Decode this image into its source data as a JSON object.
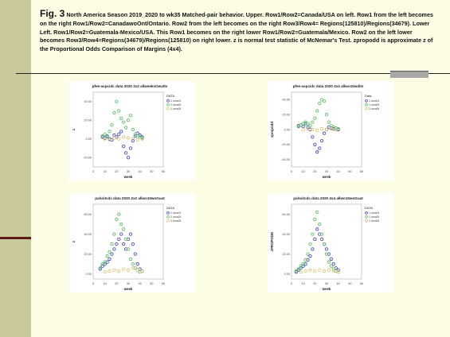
{
  "caption": {
    "fig_label": "Fig. 3",
    "text": " North America Season 2019_2020  to wk35 Matched-pair behavior. Upper. Row1/Row2=Canada/USA on left. Row1 from the left becomes on the right Row1/Row2=CanadawoOnt/Ontario. Row2 from the left becomes on the right Row3/Row4= Regions(125810)/Regions(34679).  Lower Left. Row1/Row2=Guatemala-Mexico/USA. This Row1 becomes on the right lower Row1/Row2=Guatemala/Mexico. Row2 on the left lower becomes Row3/Row4=Regions(34679)/Regions(125810) on right lower. z is normal test statistic of McNemar's Test. zpropodd is approximate z of the Proportional Odds Comparison of Margins (4x4)."
  },
  "colors": {
    "sidebar": "#c9c99b",
    "background": "#fdfde6",
    "s1": "#4a4db8",
    "s2": "#5fbf6a",
    "s3": "#e0c47a"
  },
  "chart_data": [
    {
      "type": "scatter",
      "title": "pfee-aspcidc data 2020 2x2 allweeksOwatts",
      "xlabel": "week",
      "ylabel": "z",
      "xticks": [
        "0",
        "10",
        "20",
        "30",
        "40",
        "50",
        "60"
      ],
      "yticks": [
        "40.00",
        "20.00",
        "0.00",
        "-20.00"
      ],
      "xlim": [
        0,
        60
      ],
      "ylim": [
        -30,
        50
      ],
      "legend": {
        "title": "DATA",
        "entries": [
          "1 urca1t",
          "1 urca2t",
          "1 urca3t"
        ]
      },
      "series": [
        {
          "name": "1 urca1t",
          "x": [
            8,
            10,
            12,
            14,
            16,
            18,
            20,
            22,
            24,
            26,
            28,
            30,
            32,
            34,
            36,
            38,
            40,
            42
          ],
          "y": [
            2,
            1,
            3,
            0,
            -1,
            4,
            2,
            5,
            8,
            -8,
            -15,
            -20,
            -10,
            -2,
            3,
            6,
            4,
            2
          ]
        },
        {
          "name": "1 urca2t",
          "x": [
            8,
            10,
            12,
            14,
            16,
            18,
            20,
            22,
            24,
            26,
            28,
            30,
            32,
            34,
            36,
            38,
            40,
            42
          ],
          "y": [
            3,
            5,
            2,
            8,
            15,
            28,
            40,
            30,
            22,
            18,
            12,
            20,
            25,
            10,
            5,
            3,
            2,
            1
          ]
        },
        {
          "name": "1 urca3t",
          "x": [
            10,
            14,
            18,
            22,
            26,
            30,
            34,
            38,
            42
          ],
          "y": [
            0,
            -1,
            1,
            0,
            2,
            1,
            0,
            -1,
            0
          ]
        }
      ]
    },
    {
      "type": "scatter",
      "title": "pfee-aspcidc data 2020 4x4 allwo10wdits",
      "xlabel": "week",
      "ylabel": "zpropodd",
      "xticks": [
        "0",
        "10",
        "20",
        "30",
        "40",
        "50",
        "60"
      ],
      "yticks": [
        "40.00",
        "20.00",
        "0.00",
        "-20.00",
        "-40.00"
      ],
      "xlim": [
        0,
        60
      ],
      "ylim": [
        -50,
        50
      ],
      "legend": {
        "title": "Data",
        "entries": [
          "1 urca1t",
          "1 urca2t",
          "1 urca3t"
        ]
      },
      "series": [
        {
          "name": "1 urca1t",
          "x": [
            6,
            8,
            10,
            12,
            14,
            16,
            18,
            20,
            22,
            24,
            26,
            28,
            30,
            32,
            34,
            36,
            38,
            40
          ],
          "y": [
            5,
            6,
            4,
            8,
            3,
            0,
            -10,
            -20,
            -30,
            -25,
            -15,
            -5,
            0,
            3,
            2,
            1,
            0,
            0
          ]
        },
        {
          "name": "1 urca2t",
          "x": [
            6,
            8,
            10,
            12,
            14,
            16,
            18,
            20,
            22,
            24,
            26,
            28,
            30,
            32,
            34,
            36,
            38,
            40
          ],
          "y": [
            4,
            6,
            8,
            10,
            8,
            5,
            10,
            15,
            25,
            35,
            40,
            38,
            20,
            10,
            5,
            3,
            2,
            1
          ]
        },
        {
          "name": "1 urca3t",
          "x": [
            10,
            14,
            18,
            22,
            26,
            30,
            34,
            38
          ],
          "y": [
            0,
            1,
            0,
            -1,
            1,
            0,
            1,
            0
          ]
        }
      ]
    },
    {
      "type": "scatter",
      "title": "pahoitcdc data 2020 2x2 allwo10woGuat",
      "xlabel": "week",
      "ylabel": "z",
      "xticks": [
        "0",
        "10",
        "20",
        "30",
        "40",
        "50",
        "60"
      ],
      "yticks": [
        "60.00",
        "40.00",
        "20.00",
        "0.00"
      ],
      "xlim": [
        0,
        60
      ],
      "ylim": [
        -5,
        70
      ],
      "legend": {
        "title": "DATA",
        "entries": [
          "1 urca1t",
          "1 urca2t",
          "1 urca3t"
        ]
      },
      "series": [
        {
          "name": "1 urca1t",
          "x": [
            6,
            8,
            10,
            12,
            14,
            16,
            18,
            20,
            22,
            24,
            26,
            28,
            30,
            32,
            34,
            36,
            38,
            40,
            42
          ],
          "y": [
            5,
            8,
            10,
            12,
            15,
            20,
            25,
            30,
            35,
            40,
            30,
            25,
            35,
            40,
            30,
            20,
            10,
            5,
            3
          ]
        },
        {
          "name": "1 urca2t",
          "x": [
            6,
            8,
            10,
            12,
            14,
            16,
            18,
            20,
            22,
            24,
            26,
            28,
            30,
            32,
            34,
            36,
            38,
            40
          ],
          "y": [
            6,
            10,
            12,
            18,
            22,
            30,
            40,
            55,
            60,
            50,
            45,
            35,
            25,
            15,
            10,
            6,
            4,
            2
          ]
        },
        {
          "name": "1 urca3t",
          "x": [
            10,
            14,
            18,
            22,
            26,
            30,
            34,
            38,
            42
          ],
          "y": [
            2,
            3,
            4,
            3,
            5,
            4,
            6,
            4,
            3
          ]
        }
      ]
    },
    {
      "type": "scatter",
      "title": "pahoitcdc data 2020 4x4 allwo10woGuat",
      "xlabel": "week",
      "ylabel": "zPROPODD",
      "xticks": [
        "0",
        "10",
        "20",
        "30",
        "40",
        "50",
        "60"
      ],
      "yticks": [
        "60.00",
        "40.00",
        "20.00",
        "0.00"
      ],
      "xlim": [
        0,
        60
      ],
      "ylim": [
        -5,
        70
      ],
      "legend": {
        "title": "DATA",
        "entries": [
          "1 urca1t",
          "1 urca2t",
          "1 urca3t"
        ]
      },
      "series": [
        {
          "name": "1 urca1t",
          "x": [
            4,
            6,
            8,
            10,
            12,
            14,
            16,
            18,
            20,
            22,
            24,
            26,
            28,
            30,
            32,
            34,
            36,
            38,
            40
          ],
          "y": [
            2,
            4,
            6,
            8,
            10,
            14,
            18,
            25,
            35,
            45,
            40,
            35,
            30,
            25,
            20,
            15,
            10,
            6,
            4
          ]
        },
        {
          "name": "1 urca2t",
          "x": [
            4,
            6,
            8,
            10,
            12,
            14,
            16,
            18,
            20,
            22,
            24,
            26,
            28,
            30,
            32,
            34,
            36,
            38,
            40
          ],
          "y": [
            3,
            5,
            8,
            10,
            14,
            20,
            30,
            40,
            55,
            62,
            50,
            40,
            30,
            20,
            12,
            8,
            5,
            3,
            2
          ]
        },
        {
          "name": "1 urca3t",
          "x": [
            8,
            12,
            16,
            20,
            24,
            28,
            32,
            36,
            40
          ],
          "y": [
            2,
            3,
            4,
            3,
            4,
            3,
            4,
            3,
            2
          ]
        }
      ]
    }
  ]
}
